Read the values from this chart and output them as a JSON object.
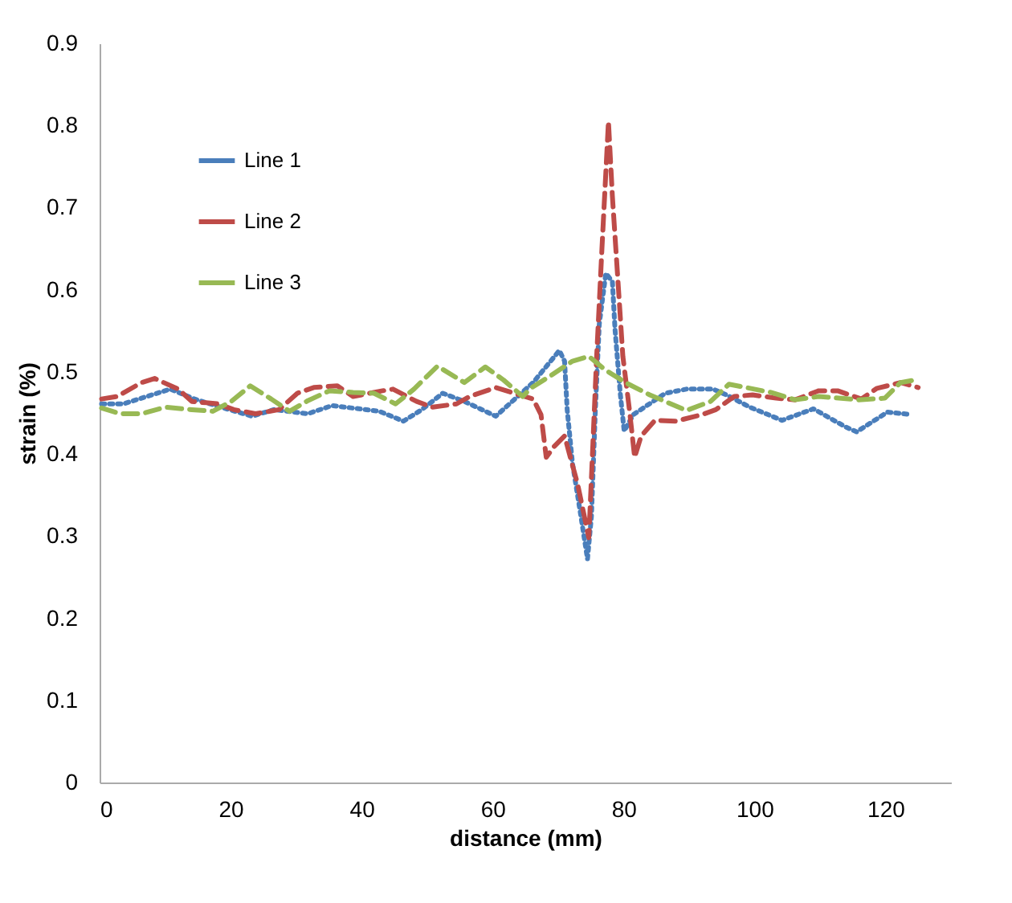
{
  "chart_data": {
    "type": "line",
    "xlabel": "distance (mm)",
    "ylabel": "strain (%)",
    "xlim": [
      0,
      130
    ],
    "xticks": [
      0,
      20,
      40,
      60,
      80,
      100,
      120
    ],
    "ylim": [
      0,
      0.9
    ],
    "yticks": [
      0,
      0.1,
      0.2,
      0.3,
      0.4,
      0.5,
      0.6,
      0.7,
      0.8,
      0.9
    ],
    "grid": false,
    "legend": "top left",
    "marker": "none",
    "series": [
      {
        "name": "Line 1",
        "color": "#4a7ebb",
        "line_style": "dotted",
        "x": [
          0.3,
          3.6,
          7.2,
          10.8,
          14.5,
          18.5,
          23.3,
          26.6,
          31.8,
          35.5,
          42.7,
          46.4,
          49.2,
          52.4,
          55.7,
          60.5,
          66.2,
          70.2,
          71.0,
          71.4,
          72.2,
          73.5,
          74.5,
          75.1,
          75.7,
          76.3,
          77.3,
          78.3,
          78.7,
          79.5,
          80.1,
          81.5,
          86.4,
          89.6,
          93.7,
          95.7,
          99.3,
          104.2,
          109.0,
          113.9,
          115.6,
          120.3,
          124.0
        ],
        "values": [
          0.461,
          0.461,
          0.47,
          0.479,
          0.467,
          0.457,
          0.446,
          0.454,
          0.449,
          0.459,
          0.452,
          0.44,
          0.454,
          0.474,
          0.464,
          0.446,
          0.487,
          0.526,
          0.513,
          0.454,
          0.389,
          0.324,
          0.272,
          0.324,
          0.454,
          0.558,
          0.62,
          0.61,
          0.552,
          0.474,
          0.428,
          0.448,
          0.474,
          0.479,
          0.479,
          0.472,
          0.457,
          0.441,
          0.455,
          0.433,
          0.427,
          0.451,
          0.448
        ]
      },
      {
        "name": "Line 2",
        "color": "#be4b48",
        "line_style": "dashed",
        "x": [
          0.3,
          2.7,
          6.4,
          8.4,
          12.0,
          14.1,
          18.1,
          20.5,
          23.8,
          27.4,
          30.2,
          32.7,
          36.3,
          38.7,
          43.2,
          44.8,
          48.4,
          50.8,
          54.5,
          56.5,
          60.5,
          66.2,
          67.4,
          68.2,
          69.4,
          71.0,
          73.0,
          74.7,
          75.2,
          75.9,
          76.7,
          77.7,
          78.3,
          79.1,
          79.9,
          80.9,
          81.7,
          82.7,
          84.8,
          88.0,
          92.0,
          94.1,
          96.9,
          99.7,
          103.3,
          106.2,
          109.8,
          112.7,
          116.3,
          118.7,
          122.3,
          125.0
        ],
        "values": [
          0.467,
          0.47,
          0.487,
          0.492,
          0.479,
          0.464,
          0.461,
          0.454,
          0.449,
          0.454,
          0.474,
          0.481,
          0.483,
          0.47,
          0.477,
          0.479,
          0.464,
          0.457,
          0.461,
          0.47,
          0.481,
          0.467,
          0.448,
          0.396,
          0.409,
          0.422,
          0.363,
          0.298,
          0.389,
          0.519,
          0.649,
          0.805,
          0.714,
          0.617,
          0.519,
          0.454,
          0.396,
          0.422,
          0.441,
          0.44,
          0.448,
          0.454,
          0.47,
          0.472,
          0.468,
          0.466,
          0.477,
          0.477,
          0.467,
          0.48,
          0.487,
          0.481
        ]
      },
      {
        "name": "Line 3",
        "color": "#98b954",
        "line_style": "dashed",
        "x": [
          0.3,
          3.2,
          6.4,
          10.0,
          14.1,
          17.3,
          20.1,
          23.0,
          26.2,
          29.0,
          31.8,
          35.1,
          38.7,
          41.9,
          45.2,
          48.0,
          51.6,
          55.7,
          58.9,
          61.7,
          64.6,
          65.8,
          69.0,
          72.2,
          74.7,
          77.1,
          80.3,
          84.0,
          89.6,
          93.3,
          96.1,
          102.5,
          106.2,
          109.8,
          115.9,
          119.9,
          122.3,
          124.4
        ],
        "values": [
          0.456,
          0.449,
          0.449,
          0.457,
          0.454,
          0.452,
          0.464,
          0.483,
          0.467,
          0.452,
          0.465,
          0.477,
          0.475,
          0.474,
          0.461,
          0.479,
          0.507,
          0.487,
          0.506,
          0.49,
          0.47,
          0.48,
          0.496,
          0.513,
          0.519,
          0.503,
          0.487,
          0.472,
          0.453,
          0.464,
          0.485,
          0.475,
          0.466,
          0.47,
          0.466,
          0.468,
          0.487,
          0.49
        ]
      }
    ]
  }
}
